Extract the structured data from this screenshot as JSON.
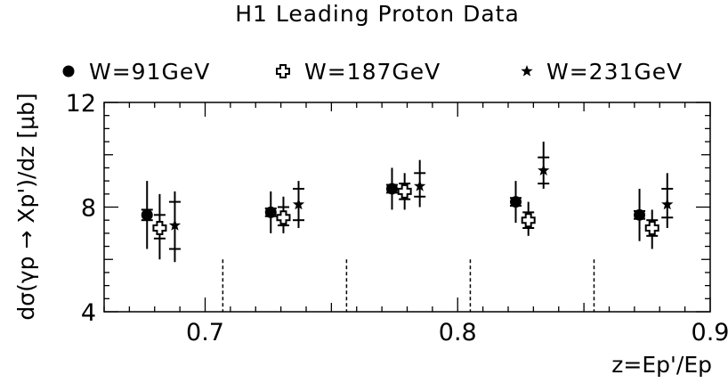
{
  "chart_data": {
    "type": "scatter",
    "title": "H1 Leading Proton Data",
    "xlabel": "z=Ep'/Ep",
    "ylabel": "dσ(γp → Xp')/dz [μb]",
    "xlim": [
      0.66,
      0.9
    ],
    "ylim": [
      4,
      12
    ],
    "x_ticks": [
      "0.7",
      "0.8",
      "0.9"
    ],
    "y_ticks": [
      "4",
      "8",
      "12"
    ],
    "grid": false,
    "legend_position": "top",
    "bin_separators": [
      0.707,
      0.756,
      0.805,
      0.854
    ],
    "series": [
      {
        "name": "W=91GeV",
        "marker": "circle",
        "color": "#000000",
        "points": [
          {
            "x": 0.677,
            "y": 7.7,
            "ylo": 6.4,
            "yhi": 9.0,
            "slo": 7.5,
            "shi": 7.9
          },
          {
            "x": 0.726,
            "y": 7.8,
            "ylo": 7.0,
            "yhi": 8.6,
            "slo": 7.65,
            "shi": 7.95
          },
          {
            "x": 0.774,
            "y": 8.7,
            "ylo": 7.9,
            "yhi": 9.5,
            "slo": 8.55,
            "shi": 8.85
          },
          {
            "x": 0.823,
            "y": 8.2,
            "ylo": 7.4,
            "yhi": 9.0,
            "slo": 8.05,
            "shi": 8.35
          },
          {
            "x": 0.872,
            "y": 7.7,
            "ylo": 6.7,
            "yhi": 8.7,
            "slo": 7.55,
            "shi": 7.85
          }
        ]
      },
      {
        "name": "W=187GeV",
        "marker": "cross",
        "color": "#000000",
        "points": [
          {
            "x": 0.682,
            "y": 7.2,
            "ylo": 6.0,
            "yhi": 8.5,
            "slo": 6.8,
            "shi": 7.7
          },
          {
            "x": 0.731,
            "y": 7.6,
            "ylo": 7.0,
            "yhi": 8.4,
            "slo": 7.3,
            "shi": 8.0
          },
          {
            "x": 0.779,
            "y": 8.6,
            "ylo": 7.9,
            "yhi": 9.3,
            "slo": 8.3,
            "shi": 8.9
          },
          {
            "x": 0.828,
            "y": 7.5,
            "ylo": 6.9,
            "yhi": 8.2,
            "slo": 7.2,
            "shi": 7.8
          },
          {
            "x": 0.877,
            "y": 7.2,
            "ylo": 6.4,
            "yhi": 7.9,
            "slo": 6.9,
            "shi": 7.5
          }
        ]
      },
      {
        "name": "W=231GeV",
        "marker": "star",
        "color": "#000000",
        "points": [
          {
            "x": 0.688,
            "y": 7.3,
            "ylo": 5.9,
            "yhi": 8.6,
            "slo": 6.4,
            "shi": 8.2
          },
          {
            "x": 0.737,
            "y": 8.1,
            "ylo": 7.2,
            "yhi": 9.0,
            "slo": 7.5,
            "shi": 8.7
          },
          {
            "x": 0.785,
            "y": 8.8,
            "ylo": 8.0,
            "yhi": 9.8,
            "slo": 8.4,
            "shi": 9.3
          },
          {
            "x": 0.834,
            "y": 9.4,
            "ylo": 8.7,
            "yhi": 10.5,
            "slo": 8.9,
            "shi": 9.9
          },
          {
            "x": 0.883,
            "y": 8.1,
            "ylo": 7.2,
            "yhi": 9.3,
            "slo": 7.6,
            "shi": 8.7
          }
        ]
      }
    ]
  }
}
